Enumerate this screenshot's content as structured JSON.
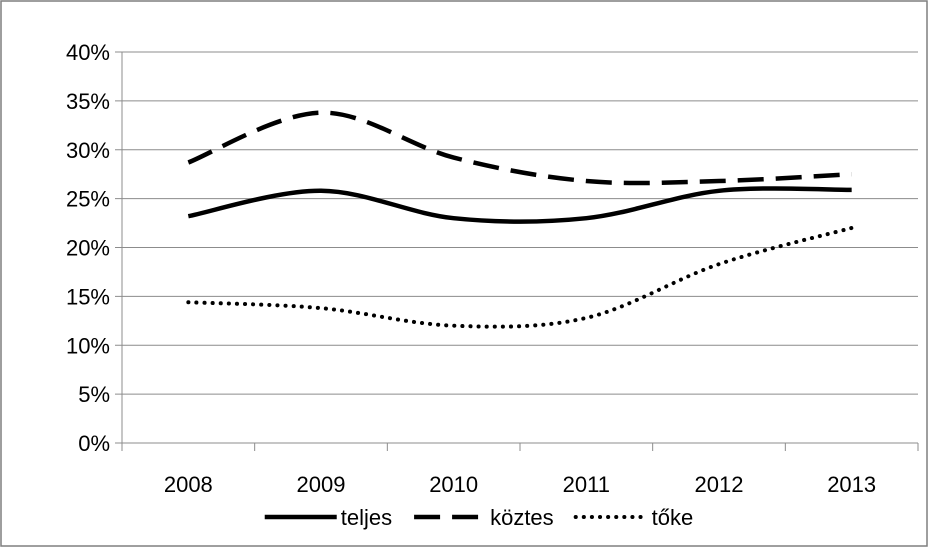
{
  "chart_data": {
    "type": "line",
    "title": "",
    "xlabel": "",
    "ylabel": "",
    "categories": [
      "2008",
      "2009",
      "2010",
      "2011",
      "2012",
      "2013"
    ],
    "y_tick_labels": [
      "0%",
      "5%",
      "10%",
      "15%",
      "20%",
      "25%",
      "30%",
      "35%",
      "40%"
    ],
    "ylim": [
      0,
      0.4
    ],
    "y_format": "percent",
    "grid": "horizontal",
    "legend_position": "bottom",
    "series": [
      {
        "name": "teljes",
        "line_style": "solid",
        "color": "#000000",
        "values": [
          0.232,
          0.258,
          0.23,
          0.23,
          0.258,
          0.259
        ]
      },
      {
        "name": "köztes",
        "line_style": "dashed",
        "color": "#000000",
        "values": [
          0.287,
          0.338,
          0.292,
          0.268,
          0.268,
          0.275
        ]
      },
      {
        "name": "tőke",
        "line_style": "dotted",
        "color": "#000000",
        "values": [
          0.144,
          0.138,
          0.12,
          0.128,
          0.183,
          0.22
        ]
      }
    ]
  },
  "colors": {
    "background": "#ffffff",
    "gridline": "#8c8c8c",
    "axis": "#8c8c8c",
    "frame": "#7f7f7f",
    "series": "#000000"
  }
}
